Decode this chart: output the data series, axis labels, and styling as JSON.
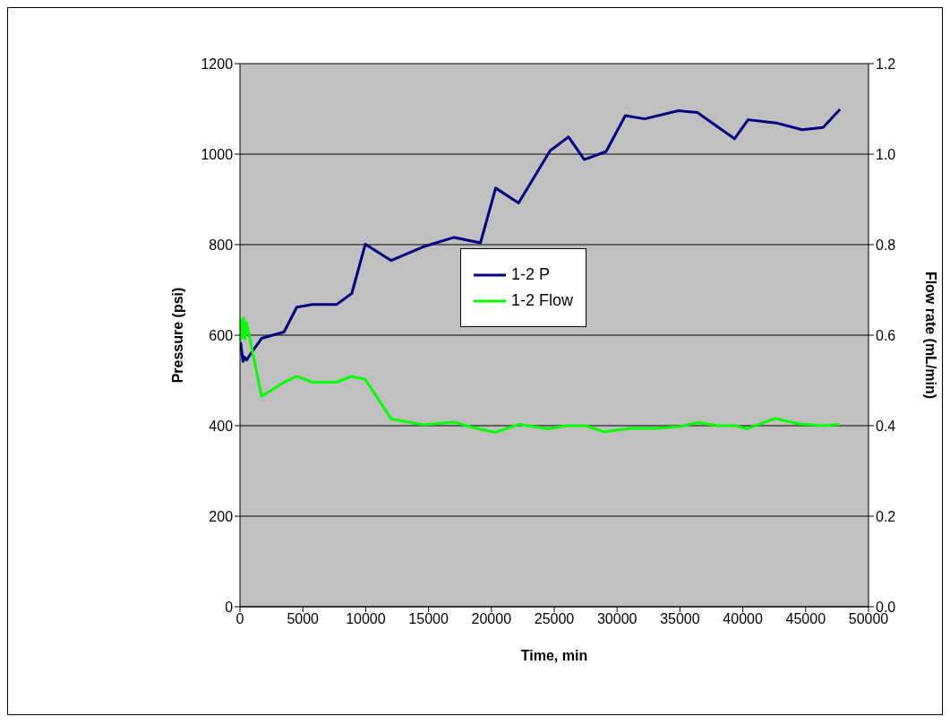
{
  "chart_data": {
    "type": "line",
    "xlabel": "Time, min",
    "ylabel": "Pressure (psi)",
    "y2label": "Flow rate (mL/min)",
    "series": [
      {
        "name": "1-2 P",
        "color": "#000080",
        "x": [
          40,
          240,
          340,
          530,
          830,
          1720,
          3500,
          4520,
          5750,
          7700,
          8890,
          9970,
          12030,
          14550,
          17020,
          19130,
          20340,
          22160,
          24680,
          26140,
          27390,
          29130,
          30650,
          32190,
          34890,
          36380,
          39340,
          40420,
          42650,
          44710,
          46390,
          47730
        ],
        "values": [
          585,
          542,
          552,
          545,
          558,
          593,
          607,
          662,
          668,
          668,
          692,
          801,
          765,
          795,
          816,
          804,
          925,
          892,
          1008,
          1038,
          988,
          1006,
          1085,
          1078,
          1096,
          1092,
          1034,
          1076,
          1069,
          1054,
          1059,
          1099
        ]
      },
      {
        "name": "1-2 Flow",
        "color": "#00ff00",
        "axis": "y2",
        "x": [
          40,
          100,
          300,
          380,
          500,
          530,
          1720,
          3500,
          4520,
          5750,
          7700,
          8890,
          9970,
          12030,
          14550,
          17020,
          18800,
          20300,
          22200,
          24500,
          26000,
          27500,
          29000,
          31000,
          33000,
          35000,
          36400,
          38000,
          39400,
          40300,
          42600,
          44500,
          46400,
          47700
        ],
        "values": [
          0.637,
          0.591,
          0.638,
          0.591,
          0.627,
          0.627,
          0.465,
          0.496,
          0.509,
          0.496,
          0.496,
          0.509,
          0.502,
          0.415,
          0.402,
          0.408,
          0.394,
          0.385,
          0.403,
          0.393,
          0.4,
          0.4,
          0.386,
          0.394,
          0.394,
          0.398,
          0.407,
          0.4,
          0.4,
          0.393,
          0.416,
          0.404,
          0.4,
          0.403
        ]
      }
    ],
    "xlim": [
      0,
      50000
    ],
    "xticks": [
      0,
      5000,
      10000,
      15000,
      20000,
      25000,
      30000,
      35000,
      40000,
      45000,
      50000
    ],
    "ylim": [
      0,
      1200
    ],
    "yticks": [
      0,
      200,
      400,
      600,
      800,
      1000,
      1200
    ],
    "y2lim": [
      0,
      1.2
    ],
    "y2ticks": [
      {
        "value": 0,
        "label": "0.0"
      },
      {
        "value": 0.2,
        "label": "0.2"
      },
      {
        "value": 0.4,
        "label": "0.4"
      },
      {
        "value": 0.6,
        "label": "0.6"
      },
      {
        "value": 0.8,
        "label": "0.8"
      },
      {
        "value": 1,
        "label": "1.0"
      },
      {
        "value": 1.2,
        "label": "1.2"
      }
    ],
    "grid": "y",
    "legend": "center",
    "marker": "none",
    "line_style": "solid"
  }
}
